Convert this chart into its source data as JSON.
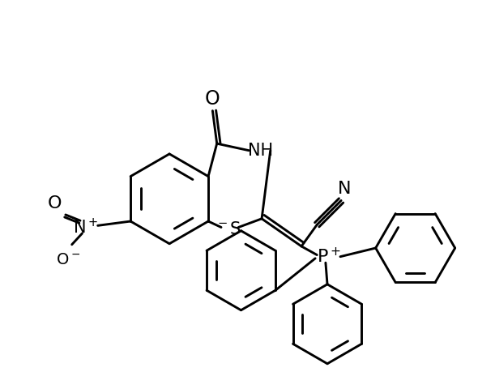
{
  "background_color": "#ffffff",
  "line_color": "#000000",
  "line_width": 2.1,
  "figure_size": [
    6.11,
    4.8
  ],
  "dpi": 100,
  "xlim": [
    20,
    591
  ],
  "ylim": [
    20,
    460
  ]
}
